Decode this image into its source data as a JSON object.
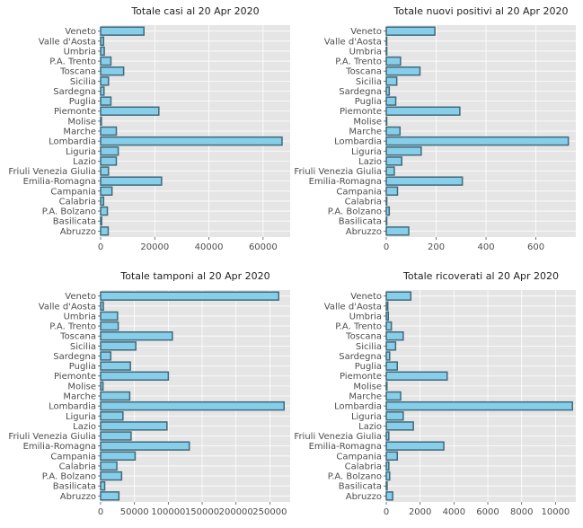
{
  "chart_data": [
    {
      "type": "bar",
      "orientation": "horizontal",
      "title": "Totale casi al 20 Apr 2020",
      "categories": [
        "Abruzzo",
        "Basilicata",
        "P.A. Bolzano",
        "Calabria",
        "Campania",
        "Emilia-Romagna",
        "Friuli Venezia Giulia",
        "Lazio",
        "Liguria",
        "Lombardia",
        "Marche",
        "Molise",
        "Piemonte",
        "Puglia",
        "Sardegna",
        "Sicilia",
        "Toscana",
        "P.A. Trento",
        "Umbria",
        "Valle d'Aosta",
        "Veneto"
      ],
      "values": [
        2800,
        370,
        2500,
        1100,
        4200,
        22500,
        2900,
        5800,
        6500,
        67000,
        5800,
        280,
        21500,
        3800,
        1250,
        2900,
        8500,
        3800,
        1350,
        1100,
        16000
      ],
      "xlim": [
        0,
        70000
      ],
      "xticks": [
        0,
        20000,
        40000,
        60000
      ],
      "grid": true
    },
    {
      "type": "bar",
      "orientation": "horizontal",
      "title": "Totale nuovi positivi al 20 Apr 2020",
      "categories": [
        "Abruzzo",
        "Basilicata",
        "P.A. Bolzano",
        "Calabria",
        "Campania",
        "Emilia-Romagna",
        "Friuli Venezia Giulia",
        "Lazio",
        "Liguria",
        "Lombardia",
        "Marche",
        "Molise",
        "Piemonte",
        "Puglia",
        "Sardegna",
        "Sicilia",
        "Toscana",
        "P.A. Trento",
        "Umbria",
        "Valle d'Aosta",
        "Veneto"
      ],
      "values": [
        90,
        1,
        12,
        2,
        45,
        305,
        32,
        62,
        140,
        730,
        55,
        1,
        295,
        38,
        12,
        42,
        135,
        57,
        2,
        1,
        195
      ],
      "xlim": [
        0,
        760
      ],
      "xticks": [
        0,
        200,
        400,
        600
      ],
      "grid": true
    },
    {
      "type": "bar",
      "orientation": "horizontal",
      "title": "Totale tamponi al 20 Apr 2020",
      "categories": [
        "Abruzzo",
        "Basilicata",
        "P.A. Bolzano",
        "Calabria",
        "Campania",
        "Emilia-Romagna",
        "Friuli Venezia Giulia",
        "Lazio",
        "Liguria",
        "Lombardia",
        "Marche",
        "Molise",
        "Piemonte",
        "Puglia",
        "Sardegna",
        "Sicilia",
        "Toscana",
        "P.A. Trento",
        "Umbria",
        "Valle d'Aosta",
        "Veneto"
      ],
      "values": [
        27000,
        6000,
        31000,
        24000,
        51000,
        131000,
        45000,
        98000,
        33000,
        271000,
        43000,
        3500,
        100000,
        44000,
        15000,
        52000,
        106000,
        26000,
        25000,
        4000,
        263000
      ],
      "xlim": [
        0,
        280000
      ],
      "xticks": [
        0,
        50000,
        100000,
        150000,
        200000,
        250000
      ],
      "grid": true
    },
    {
      "type": "bar",
      "orientation": "horizontal",
      "title": "Totale ricoverati al 20 Apr 2020",
      "categories": [
        "Abruzzo",
        "Basilicata",
        "P.A. Bolzano",
        "Calabria",
        "Campania",
        "Emilia-Romagna",
        "Friuli Venezia Giulia",
        "Lazio",
        "Liguria",
        "Lombardia",
        "Marche",
        "Molise",
        "Piemonte",
        "Puglia",
        "Sardegna",
        "Sicilia",
        "Toscana",
        "P.A. Trento",
        "Umbria",
        "Valle d'Aosta",
        "Veneto"
      ],
      "values": [
        380,
        50,
        200,
        150,
        650,
        3400,
        150,
        1600,
        1000,
        11000,
        850,
        40,
        3600,
        650,
        200,
        550,
        1000,
        300,
        120,
        90,
        1450
      ],
      "xlim": [
        0,
        11200
      ],
      "xticks": [
        0,
        2000,
        4000,
        6000,
        8000,
        10000
      ],
      "grid": true
    }
  ]
}
